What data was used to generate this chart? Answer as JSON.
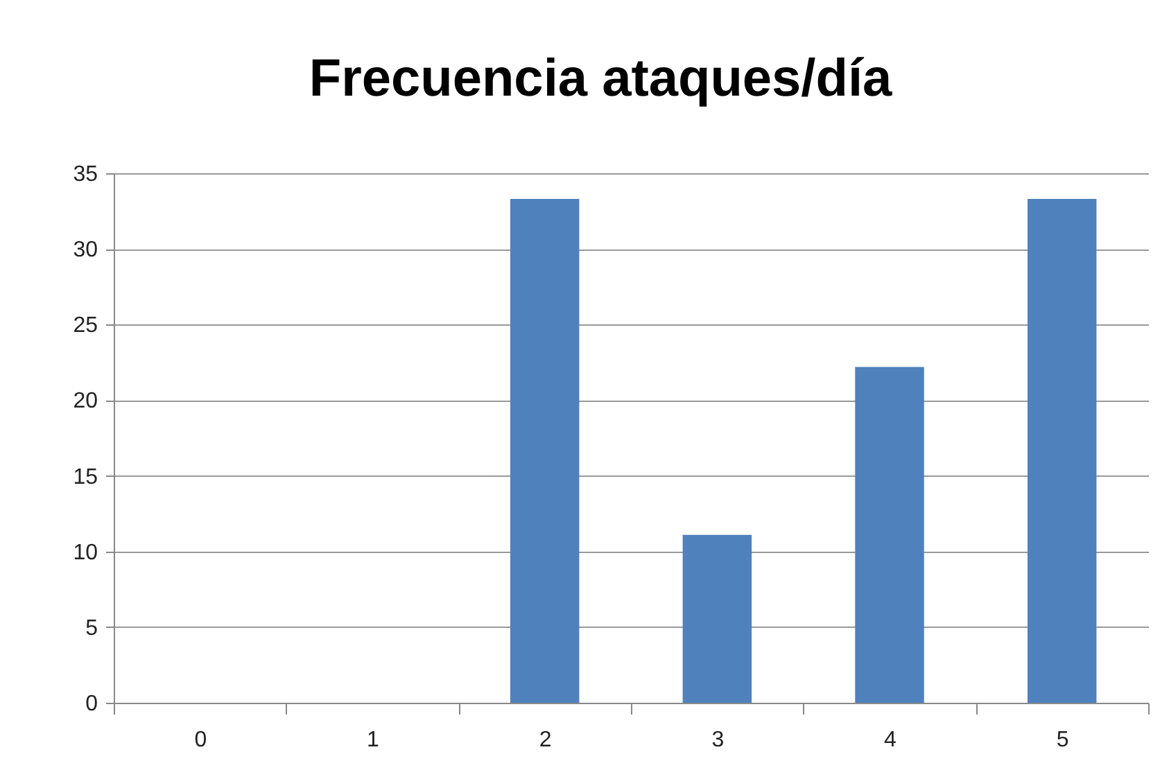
{
  "chart_data": {
    "type": "bar",
    "title": "Frecuencia ataques/día",
    "categories": [
      "0",
      "1",
      "2",
      "3",
      "4",
      "5"
    ],
    "values": [
      0,
      0,
      33.3,
      11.1,
      22.2,
      33.3
    ],
    "color": "#4f81bd",
    "ylim": [
      0,
      35
    ],
    "yticks": [
      0,
      5,
      10,
      15,
      20,
      25,
      30,
      35
    ],
    "grid": "y"
  }
}
